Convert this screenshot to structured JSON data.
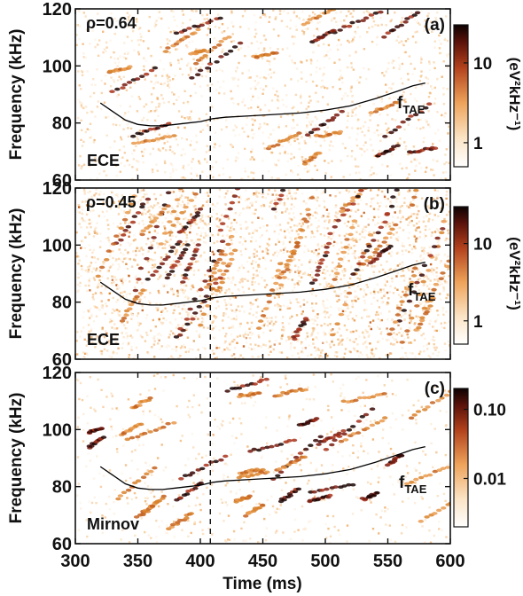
{
  "chart_data": [
    {
      "type": "heatmap",
      "panel_label": "(a)",
      "annotation": "ρ=0.64",
      "diagnostic": "ECE",
      "ylabel": "Frequency (kHz)",
      "xlim": [
        300,
        600
      ],
      "ylim": [
        60,
        120
      ],
      "yticks": [
        60,
        80,
        100,
        120
      ],
      "colorbar": {
        "label": "(eV²kHz⁻¹)",
        "scale": "log",
        "ticks": [
          "1",
          "10"
        ],
        "tick_values": [
          1,
          10
        ],
        "range": [
          0.5,
          30
        ]
      },
      "vertical_marker_x": 408,
      "series": [
        {
          "name": "f_TAE",
          "x": [
            320,
            330,
            340,
            350,
            360,
            370,
            380,
            390,
            400,
            410,
            420,
            440,
            460,
            480,
            500,
            520,
            540,
            560,
            570,
            580
          ],
          "y": [
            87,
            84,
            81,
            79.5,
            79,
            79,
            79.5,
            80,
            80.5,
            81.5,
            82,
            82.5,
            83,
            83.5,
            84.5,
            86,
            88.5,
            91.5,
            93,
            94
          ]
        }
      ],
      "curve_label": {
        "base": "f",
        "sub": "TAE"
      }
    },
    {
      "type": "heatmap",
      "panel_label": "(b)",
      "annotation": "ρ=0.45",
      "diagnostic": "ECE",
      "ylabel": "Frequency (kHz)",
      "xlim": [
        300,
        600
      ],
      "ylim": [
        60,
        120
      ],
      "yticks": [
        60,
        80,
        100,
        120
      ],
      "colorbar": {
        "label": "(eV²kHz⁻¹)",
        "scale": "log",
        "ticks": [
          "1",
          "10"
        ],
        "tick_values": [
          1,
          10
        ],
        "range": [
          0.5,
          30
        ]
      },
      "vertical_marker_x": 408,
      "series": [
        {
          "name": "f_TAE",
          "x": [
            320,
            330,
            340,
            350,
            360,
            370,
            380,
            390,
            400,
            410,
            420,
            440,
            460,
            480,
            500,
            520,
            540,
            560,
            570,
            580
          ],
          "y": [
            87,
            84,
            81,
            79.5,
            79,
            79,
            79.5,
            80,
            80.5,
            81.5,
            82,
            82.5,
            83,
            83.5,
            84.5,
            86,
            88.5,
            91.5,
            93,
            94
          ]
        }
      ],
      "curve_label": {
        "base": "f",
        "sub": "TAE"
      }
    },
    {
      "type": "heatmap",
      "panel_label": "(c)",
      "diagnostic": "Mirnov",
      "ylabel": "Frequency (kHz)",
      "xlabel": "Time (ms)",
      "xlim": [
        300,
        600
      ],
      "ylim": [
        60,
        120
      ],
      "xticks": [
        300,
        350,
        400,
        450,
        500,
        550,
        600
      ],
      "yticks": [
        60,
        80,
        100,
        120
      ],
      "colorbar": {
        "label": "",
        "scale": "log",
        "ticks": [
          "0.01",
          "0.10"
        ],
        "tick_values": [
          0.01,
          0.1
        ],
        "range": [
          0.002,
          0.2
        ]
      },
      "vertical_marker_x": 408,
      "series": [
        {
          "name": "f_TAE",
          "x": [
            320,
            330,
            340,
            350,
            360,
            370,
            380,
            390,
            400,
            410,
            420,
            440,
            460,
            480,
            500,
            520,
            540,
            560,
            570,
            580
          ],
          "y": [
            87,
            84,
            81,
            79.5,
            79,
            79,
            79.5,
            80,
            80.5,
            81.5,
            82,
            82.5,
            83,
            83.5,
            84.5,
            86,
            88.5,
            91.5,
            93,
            94
          ]
        }
      ],
      "curve_label": {
        "base": "f",
        "sub": "TAE"
      }
    }
  ],
  "colors": {
    "low": "#ffffff",
    "mid1": "#f7c89a",
    "mid2": "#d9822b",
    "mid3": "#a8321b",
    "high": "#1a0503",
    "curve": "#000000"
  }
}
